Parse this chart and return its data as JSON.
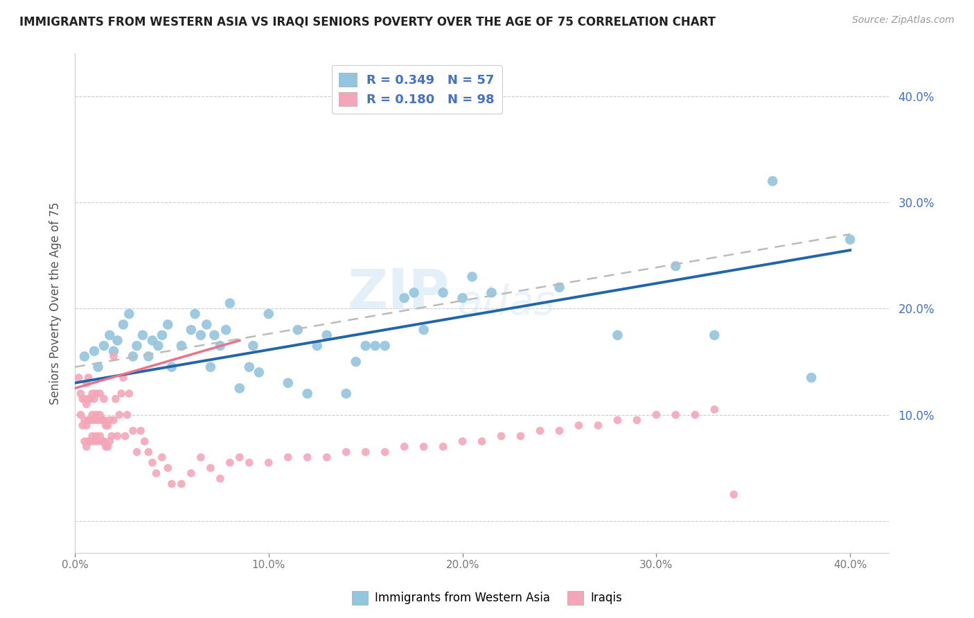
{
  "title": "IMMIGRANTS FROM WESTERN ASIA VS IRAQI SENIORS POVERTY OVER THE AGE OF 75 CORRELATION CHART",
  "source": "Source: ZipAtlas.com",
  "ylabel": "Seniors Poverty Over the Age of 75",
  "right_yticks": [
    "10.0%",
    "20.0%",
    "30.0%",
    "40.0%"
  ],
  "right_ytick_vals": [
    0.1,
    0.2,
    0.3,
    0.4
  ],
  "xlim": [
    0.0,
    0.42
  ],
  "ylim": [
    -0.03,
    0.44
  ],
  "watermark_zip": "ZIP",
  "watermark_atlas": "atlas",
  "color_blue": "#92c5de",
  "color_pink": "#f4a6b8",
  "color_blue_line": "#2166ac",
  "color_pink_line": "#e8748a",
  "color_dashed": "#bbbbbb",
  "blue_scatter_x": [
    0.005,
    0.01,
    0.012,
    0.015,
    0.018,
    0.02,
    0.022,
    0.025,
    0.028,
    0.03,
    0.032,
    0.035,
    0.038,
    0.04,
    0.043,
    0.045,
    0.048,
    0.05,
    0.055,
    0.06,
    0.062,
    0.065,
    0.068,
    0.07,
    0.072,
    0.075,
    0.078,
    0.08,
    0.085,
    0.09,
    0.092,
    0.095,
    0.1,
    0.11,
    0.115,
    0.12,
    0.125,
    0.13,
    0.14,
    0.145,
    0.15,
    0.155,
    0.16,
    0.17,
    0.175,
    0.18,
    0.19,
    0.2,
    0.205,
    0.215,
    0.25,
    0.28,
    0.31,
    0.33,
    0.36,
    0.38,
    0.4
  ],
  "blue_scatter_y": [
    0.155,
    0.16,
    0.145,
    0.165,
    0.175,
    0.16,
    0.17,
    0.185,
    0.195,
    0.155,
    0.165,
    0.175,
    0.155,
    0.17,
    0.165,
    0.175,
    0.185,
    0.145,
    0.165,
    0.18,
    0.195,
    0.175,
    0.185,
    0.145,
    0.175,
    0.165,
    0.18,
    0.205,
    0.125,
    0.145,
    0.165,
    0.14,
    0.195,
    0.13,
    0.18,
    0.12,
    0.165,
    0.175,
    0.12,
    0.15,
    0.165,
    0.165,
    0.165,
    0.21,
    0.215,
    0.18,
    0.215,
    0.21,
    0.23,
    0.215,
    0.22,
    0.175,
    0.24,
    0.175,
    0.32,
    0.135,
    0.265
  ],
  "pink_scatter_x": [
    0.002,
    0.003,
    0.003,
    0.004,
    0.004,
    0.005,
    0.005,
    0.005,
    0.006,
    0.006,
    0.006,
    0.006,
    0.007,
    0.007,
    0.007,
    0.007,
    0.008,
    0.008,
    0.008,
    0.009,
    0.009,
    0.009,
    0.01,
    0.01,
    0.01,
    0.011,
    0.011,
    0.011,
    0.012,
    0.012,
    0.013,
    0.013,
    0.013,
    0.014,
    0.014,
    0.015,
    0.015,
    0.015,
    0.016,
    0.016,
    0.017,
    0.017,
    0.018,
    0.018,
    0.019,
    0.02,
    0.02,
    0.021,
    0.022,
    0.023,
    0.024,
    0.025,
    0.026,
    0.027,
    0.028,
    0.03,
    0.032,
    0.034,
    0.036,
    0.038,
    0.04,
    0.042,
    0.045,
    0.048,
    0.05,
    0.055,
    0.06,
    0.065,
    0.07,
    0.075,
    0.08,
    0.085,
    0.09,
    0.1,
    0.11,
    0.12,
    0.13,
    0.14,
    0.15,
    0.16,
    0.17,
    0.18,
    0.19,
    0.2,
    0.21,
    0.22,
    0.23,
    0.24,
    0.25,
    0.26,
    0.27,
    0.28,
    0.29,
    0.3,
    0.31,
    0.32,
    0.33,
    0.34
  ],
  "pink_scatter_y": [
    0.135,
    0.1,
    0.12,
    0.09,
    0.115,
    0.075,
    0.095,
    0.115,
    0.07,
    0.09,
    0.11,
    0.13,
    0.075,
    0.095,
    0.115,
    0.135,
    0.075,
    0.095,
    0.115,
    0.08,
    0.1,
    0.12,
    0.075,
    0.095,
    0.115,
    0.08,
    0.1,
    0.12,
    0.075,
    0.095,
    0.08,
    0.1,
    0.12,
    0.075,
    0.095,
    0.075,
    0.095,
    0.115,
    0.07,
    0.09,
    0.07,
    0.09,
    0.075,
    0.095,
    0.08,
    0.155,
    0.095,
    0.115,
    0.08,
    0.1,
    0.12,
    0.135,
    0.08,
    0.1,
    0.12,
    0.085,
    0.065,
    0.085,
    0.075,
    0.065,
    0.055,
    0.045,
    0.06,
    0.05,
    0.035,
    0.035,
    0.045,
    0.06,
    0.05,
    0.04,
    0.055,
    0.06,
    0.055,
    0.055,
    0.06,
    0.06,
    0.06,
    0.065,
    0.065,
    0.065,
    0.07,
    0.07,
    0.07,
    0.075,
    0.075,
    0.08,
    0.08,
    0.085,
    0.085,
    0.09,
    0.09,
    0.095,
    0.095,
    0.1,
    0.1,
    0.1,
    0.105,
    0.025
  ],
  "blue_line_x": [
    0.0,
    0.4
  ],
  "blue_line_y": [
    0.13,
    0.255
  ],
  "pink_line_x": [
    0.0,
    0.085
  ],
  "pink_line_y": [
    0.125,
    0.17
  ],
  "dashed_line_x": [
    0.0,
    0.4
  ],
  "dashed_line_y": [
    0.145,
    0.27
  ],
  "legend_label1": "R = 0.349   N = 57",
  "legend_label2": "R = 0.180   N = 98",
  "legend_text_color": "#4472c4",
  "bottom_legend1": "Immigrants from Western Asia",
  "bottom_legend2": "Iraqis"
}
